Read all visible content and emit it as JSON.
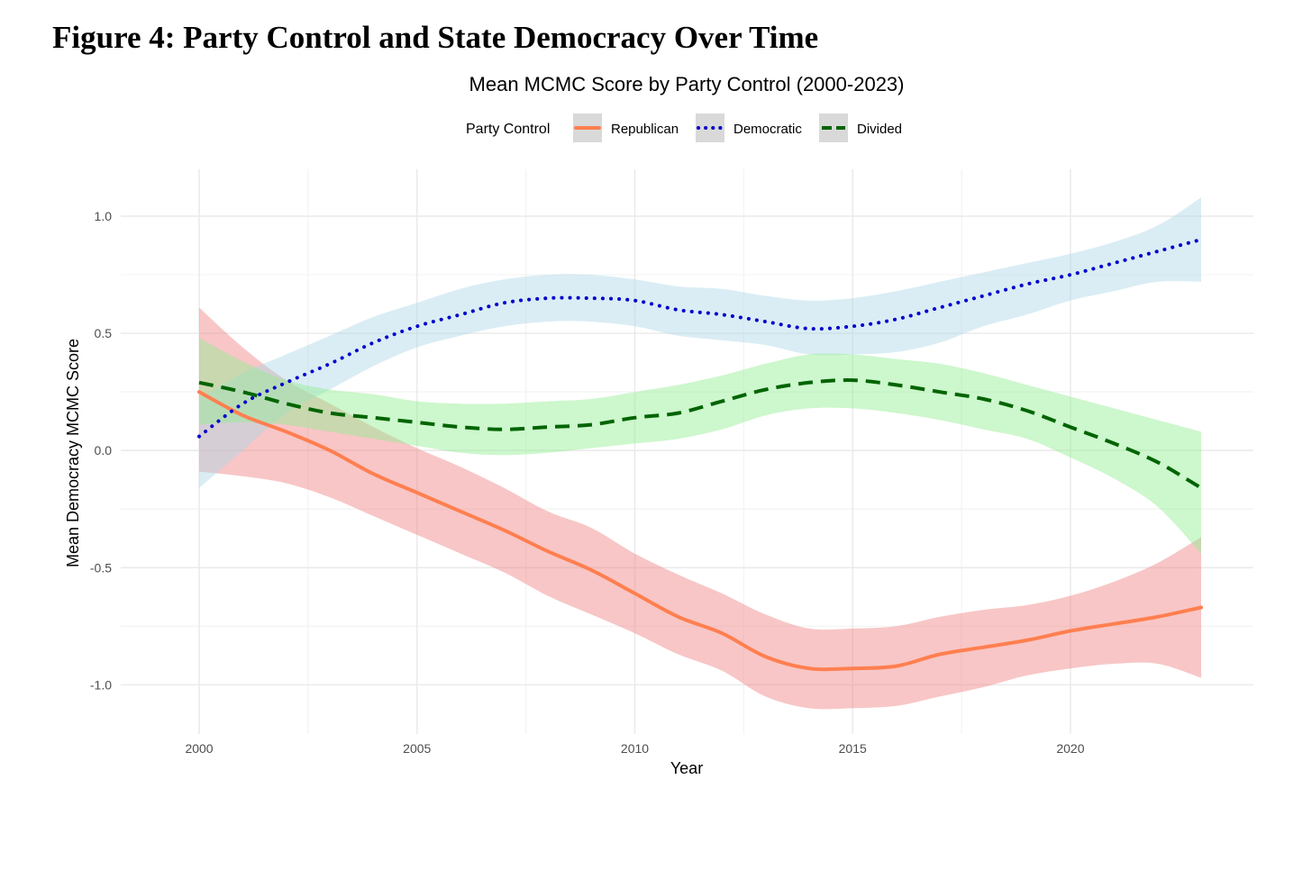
{
  "figure_title": "Figure 4: Party Control and State Democracy Over Time",
  "chart_data": {
    "type": "line",
    "title": "Mean MCMC Score by Party Control (2000-2023)",
    "xlabel": "Year",
    "ylabel": "Mean Democracy MCMC Score",
    "xlim": [
      1998.2,
      2024.2
    ],
    "ylim": [
      -1.21,
      1.2
    ],
    "x_ticks": [
      2000,
      2005,
      2010,
      2015,
      2020
    ],
    "x_tick_labels": [
      "2000",
      "2005",
      "2010",
      "2015",
      "2020"
    ],
    "y_ticks": [
      -1.0,
      -0.5,
      0.0,
      0.5,
      1.0
    ],
    "y_tick_labels": [
      "-1.0",
      "-0.5",
      "0.0",
      "0.5",
      "1.0"
    ],
    "grid": true,
    "legend": {
      "title": "Party Control",
      "placement": "top"
    },
    "x": [
      2000,
      2001,
      2002,
      2003,
      2004,
      2005,
      2006,
      2007,
      2008,
      2009,
      2010,
      2011,
      2012,
      2013,
      2014,
      2015,
      2016,
      2017,
      2018,
      2019,
      2020,
      2021,
      2022,
      2023
    ],
    "series": [
      {
        "name": "Republican",
        "color": "#FF7F50",
        "band_color": "#F08080",
        "line_style": "solid",
        "values": [
          0.25,
          0.15,
          0.08,
          0.0,
          -0.1,
          -0.18,
          -0.26,
          -0.34,
          -0.43,
          -0.51,
          -0.61,
          -0.71,
          -0.78,
          -0.88,
          -0.93,
          -0.93,
          -0.92,
          -0.87,
          -0.84,
          -0.81,
          -0.77,
          -0.74,
          -0.71,
          -0.67
        ],
        "lower": [
          -0.09,
          -0.11,
          -0.14,
          -0.2,
          -0.28,
          -0.36,
          -0.44,
          -0.52,
          -0.62,
          -0.7,
          -0.78,
          -0.87,
          -0.94,
          -1.05,
          -1.1,
          -1.1,
          -1.09,
          -1.05,
          -1.01,
          -0.96,
          -0.93,
          -0.91,
          -0.91,
          -0.97
        ],
        "upper": [
          0.61,
          0.44,
          0.3,
          0.2,
          0.1,
          0.01,
          -0.07,
          -0.16,
          -0.26,
          -0.33,
          -0.44,
          -0.53,
          -0.61,
          -0.7,
          -0.76,
          -0.76,
          -0.75,
          -0.71,
          -0.68,
          -0.66,
          -0.62,
          -0.56,
          -0.48,
          -0.37
        ]
      },
      {
        "name": "Democratic",
        "color": "#0000CD",
        "band_color": "#ADD8E6",
        "line_style": "dotted",
        "values": [
          0.06,
          0.2,
          0.29,
          0.37,
          0.46,
          0.53,
          0.58,
          0.63,
          0.65,
          0.65,
          0.64,
          0.6,
          0.58,
          0.55,
          0.52,
          0.53,
          0.56,
          0.61,
          0.66,
          0.71,
          0.75,
          0.8,
          0.85,
          0.9
        ],
        "lower": [
          -0.16,
          0.0,
          0.16,
          0.26,
          0.36,
          0.44,
          0.49,
          0.53,
          0.55,
          0.55,
          0.53,
          0.49,
          0.47,
          0.45,
          0.41,
          0.41,
          0.42,
          0.46,
          0.53,
          0.58,
          0.64,
          0.68,
          0.72,
          0.72
        ],
        "upper": [
          0.22,
          0.33,
          0.41,
          0.49,
          0.57,
          0.63,
          0.69,
          0.73,
          0.75,
          0.75,
          0.73,
          0.7,
          0.69,
          0.66,
          0.64,
          0.65,
          0.68,
          0.72,
          0.76,
          0.8,
          0.84,
          0.89,
          0.96,
          1.08
        ]
      },
      {
        "name": "Divided",
        "color": "#006400",
        "band_color": "#90EE90",
        "line_style": "dashed",
        "values": [
          0.29,
          0.25,
          0.2,
          0.16,
          0.14,
          0.12,
          0.1,
          0.09,
          0.1,
          0.11,
          0.14,
          0.16,
          0.21,
          0.26,
          0.29,
          0.3,
          0.28,
          0.25,
          0.22,
          0.17,
          0.1,
          0.03,
          -0.05,
          -0.16
        ],
        "lower": [
          0.11,
          0.12,
          0.11,
          0.08,
          0.05,
          0.02,
          -0.01,
          -0.02,
          -0.01,
          0.01,
          0.03,
          0.05,
          0.09,
          0.15,
          0.18,
          0.18,
          0.16,
          0.13,
          0.09,
          0.05,
          -0.03,
          -0.12,
          -0.24,
          -0.44
        ],
        "upper": [
          0.48,
          0.38,
          0.3,
          0.26,
          0.24,
          0.21,
          0.2,
          0.2,
          0.21,
          0.22,
          0.25,
          0.28,
          0.32,
          0.37,
          0.41,
          0.41,
          0.39,
          0.37,
          0.33,
          0.28,
          0.23,
          0.18,
          0.13,
          0.08
        ]
      }
    ]
  }
}
